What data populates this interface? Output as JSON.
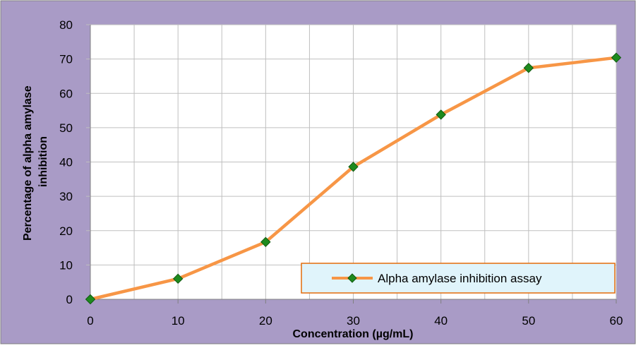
{
  "colors": {
    "chart_background": "#a99bc6",
    "plot_background": "#ffffff",
    "gridline": "#bfbfbf",
    "series_line": "#f79646",
    "marker_fill": "#1e8a1e",
    "marker_stroke": "#0f5a0f",
    "legend_background": "#e0f4fb",
    "legend_border": "#e46c0a",
    "text": "#000000"
  },
  "chart_data": {
    "type": "line",
    "title": "",
    "xlabel": "Concentration (µg/mL)",
    "ylabel_lines": [
      "Percentage of alpha amylase",
      "inhibition"
    ],
    "xlim": [
      0,
      60
    ],
    "ylim": [
      0,
      80
    ],
    "x_ticks": [
      0,
      10,
      20,
      30,
      40,
      50,
      60
    ],
    "x_tick_labels": [
      "0",
      "10",
      "20",
      "30",
      "40",
      "50",
      "60"
    ],
    "y_ticks": [
      0,
      10,
      20,
      30,
      40,
      50,
      60,
      70,
      80
    ],
    "y_tick_labels": [
      "0",
      "10",
      "20",
      "30",
      "40",
      "50",
      "60",
      "70",
      "80"
    ],
    "x_minor_gridlines": [
      5,
      15,
      25,
      35,
      45,
      55
    ],
    "grid": true,
    "legend_position": "bottom-right",
    "marker": "diamond",
    "series": [
      {
        "name": "Alpha amylase inhibition assay",
        "x": [
          0,
          10,
          20,
          30,
          40,
          50,
          60
        ],
        "values": [
          0,
          6,
          16.7,
          38.6,
          53.8,
          67.4,
          70.4
        ]
      }
    ]
  }
}
